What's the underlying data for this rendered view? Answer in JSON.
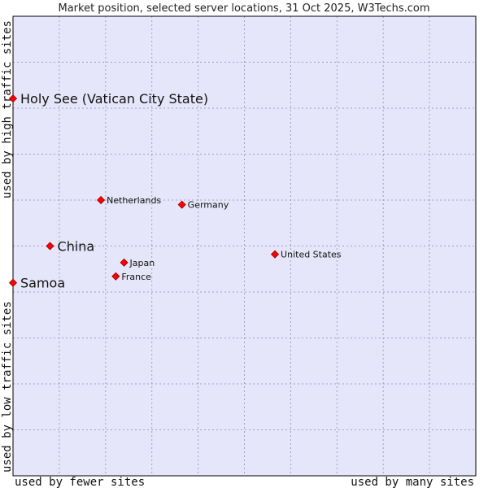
{
  "chart_data": {
    "type": "scatter",
    "title": "Market position, selected server locations, 31 Oct 2025, W3Techs.com",
    "xlabel_left": "used by fewer sites",
    "xlabel_right": "used by many sites",
    "ylabel_top": "used by high traffic sites",
    "ylabel_bottom": "used by low traffic sites",
    "xlim": [
      0,
      100
    ],
    "ylim": [
      0,
      100
    ],
    "grid": true,
    "points": [
      {
        "label": "Holy See (Vatican City State)",
        "x": 0.0,
        "y": 82.1,
        "emphasis": true
      },
      {
        "label": "Netherlands",
        "x": 19.0,
        "y": 60.0,
        "emphasis": false
      },
      {
        "label": "Germany",
        "x": 36.5,
        "y": 59.0,
        "emphasis": false
      },
      {
        "label": "China",
        "x": 8.0,
        "y": 50.0,
        "emphasis": true
      },
      {
        "label": "United States",
        "x": 56.6,
        "y": 48.2,
        "emphasis": false
      },
      {
        "label": "Japan",
        "x": 24.0,
        "y": 46.4,
        "emphasis": false
      },
      {
        "label": "France",
        "x": 22.2,
        "y": 43.4,
        "emphasis": false
      },
      {
        "label": "Samoa",
        "x": 0.0,
        "y": 42.0,
        "emphasis": true
      }
    ]
  },
  "colors": {
    "plot_background": "#e6e6fa",
    "grid": "#a0a0c0",
    "marker_fill": "#ff0000",
    "marker_stroke": "#990000"
  }
}
